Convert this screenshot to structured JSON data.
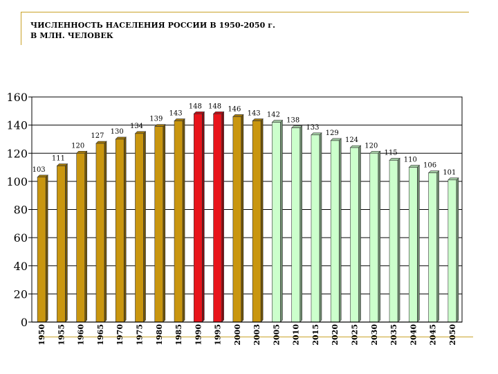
{
  "header": {
    "title_line1": "ЧИСЛЕННОСТЬ НАСЕЛЕНИЯ РОССИИ В 1950-2050 г.",
    "title_line2": "В МЛН. ЧЕЛОВЕК"
  },
  "chart_data": {
    "type": "bar",
    "title": "ЧИСЛЕННОСТЬ НАСЕЛЕНИЯ РОССИИ В 1950-2050 г. В МЛН. ЧЕЛОВЕК",
    "xlabel": "",
    "ylabel": "",
    "ylim": [
      0,
      160
    ],
    "yticks": [
      0,
      20,
      40,
      60,
      80,
      100,
      120,
      140,
      160
    ],
    "grid": true,
    "categories": [
      "1950",
      "1955",
      "1960",
      "1965",
      "1970",
      "1975",
      "1980",
      "1985",
      "1990",
      "1995",
      "2000",
      "2003",
      "2005",
      "2010",
      "2015",
      "2020",
      "2025",
      "2030",
      "2035",
      "2040",
      "2045",
      "2050"
    ],
    "values": [
      103,
      111,
      120,
      127,
      130,
      134,
      139,
      143,
      148,
      148,
      146,
      143,
      142,
      138,
      133,
      129,
      124,
      120,
      115,
      110,
      106,
      101
    ],
    "bar_colors": [
      "#c9960f",
      "#c9960f",
      "#c9960f",
      "#c9960f",
      "#c9960f",
      "#c9960f",
      "#c9960f",
      "#c9960f",
      "#e8141b",
      "#e8141b",
      "#c9960f",
      "#c9960f",
      "#ccffcc",
      "#ccffcc",
      "#ccffcc",
      "#ccffcc",
      "#ccffcc",
      "#ccffcc",
      "#ccffcc",
      "#ccffcc",
      "#ccffcc",
      "#ccffcc"
    ],
    "colors": {
      "historical": "#c9960f",
      "peak": "#e8141b",
      "forecast": "#ccffcc"
    }
  }
}
